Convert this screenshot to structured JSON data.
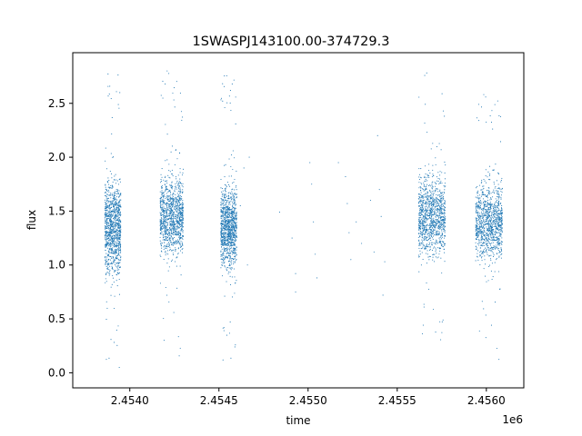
{
  "chart_data": {
    "type": "scatter",
    "title": "1SWASPJ143100.00-374729.3",
    "xlabel": "time",
    "ylabel": "flux",
    "x_offset_label": "1e6",
    "xlim": [
      2.45368,
      2.45621
    ],
    "ylim": [
      -0.14,
      2.97
    ],
    "x_ticks": [
      {
        "value": 2.454,
        "label": "2.4540"
      },
      {
        "value": 2.4545,
        "label": "2.4545"
      },
      {
        "value": 2.455,
        "label": "2.4550"
      },
      {
        "value": 2.4555,
        "label": "2.4555"
      },
      {
        "value": 2.456,
        "label": "2.4560"
      }
    ],
    "y_ticks": [
      {
        "value": 0.0,
        "label": "0.0"
      },
      {
        "value": 0.5,
        "label": "0.5"
      },
      {
        "value": 1.0,
        "label": "1.0"
      },
      {
        "value": 1.5,
        "label": "1.5"
      },
      {
        "value": 2.0,
        "label": "2.0"
      },
      {
        "value": 2.5,
        "label": "2.5"
      }
    ],
    "series": [
      {
        "color": "#1f77b4",
        "marker": "dot",
        "clusters": [
          {
            "x_range": [
              2.45386,
              2.45395
            ],
            "y_center": 1.35,
            "y_spread": 0.3,
            "y_min": 0.0,
            "y_max": 2.85
          },
          {
            "x_range": [
              2.45417,
              2.4543
            ],
            "y_center": 1.45,
            "y_spread": 0.25,
            "y_min": 0.15,
            "y_max": 2.82
          },
          {
            "x_range": [
              2.45451,
              2.4546
            ],
            "y_center": 1.35,
            "y_spread": 0.25,
            "y_min": 0.05,
            "y_max": 2.8
          },
          {
            "x_range": [
              2.45562,
              2.45577
            ],
            "y_center": 1.45,
            "y_spread": 0.25,
            "y_min": 0.3,
            "y_max": 2.8
          },
          {
            "x_range": [
              2.45594,
              2.45609
            ],
            "y_center": 1.4,
            "y_spread": 0.25,
            "y_min": 0.05,
            "y_max": 2.6
          }
        ],
        "sparse_points": [
          {
            "x": 2.45462,
            "y": 1.55
          },
          {
            "x": 2.45464,
            "y": 1.9
          },
          {
            "x": 2.45466,
            "y": 1.0
          },
          {
            "x": 2.45467,
            "y": 2.0
          },
          {
            "x": 2.45484,
            "y": 1.49
          },
          {
            "x": 2.45491,
            "y": 1.25
          },
          {
            "x": 2.45493,
            "y": 0.92
          },
          {
            "x": 2.45493,
            "y": 0.75
          },
          {
            "x": 2.45501,
            "y": 1.95
          },
          {
            "x": 2.45502,
            "y": 1.75
          },
          {
            "x": 2.45503,
            "y": 1.4
          },
          {
            "x": 2.45504,
            "y": 1.1
          },
          {
            "x": 2.45505,
            "y": 0.88
          },
          {
            "x": 2.45517,
            "y": 1.95
          },
          {
            "x": 2.45521,
            "y": 1.82
          },
          {
            "x": 2.45522,
            "y": 1.57
          },
          {
            "x": 2.45523,
            "y": 1.3
          },
          {
            "x": 2.45524,
            "y": 1.05
          },
          {
            "x": 2.45527,
            "y": 1.4
          },
          {
            "x": 2.4553,
            "y": 1.2
          },
          {
            "x": 2.45535,
            "y": 1.6
          },
          {
            "x": 2.45537,
            "y": 1.12
          },
          {
            "x": 2.45539,
            "y": 2.2
          },
          {
            "x": 2.4554,
            "y": 1.7
          },
          {
            "x": 2.45541,
            "y": 1.45
          },
          {
            "x": 2.45542,
            "y": 0.72
          },
          {
            "x": 2.45543,
            "y": 1.03
          }
        ]
      }
    ]
  }
}
